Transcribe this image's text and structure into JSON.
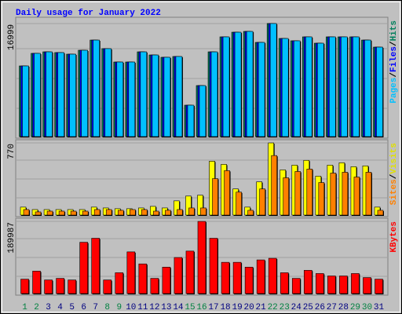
{
  "title": "Daily usage for January 2022",
  "chart_data": [
    {
      "type": "bar",
      "categories": [
        "1",
        "2",
        "3",
        "4",
        "5",
        "6",
        "7",
        "8",
        "9",
        "10",
        "11",
        "12",
        "13",
        "14",
        "15",
        "16",
        "17",
        "18",
        "19",
        "20",
        "21",
        "22",
        "23",
        "24",
        "25",
        "26",
        "27",
        "28",
        "29",
        "30",
        "31"
      ],
      "category_colors": [
        "#008040",
        "#008040",
        "#000080",
        "#000080",
        "#000080",
        "#000080",
        "#000080",
        "#008040",
        "#008040",
        "#000080",
        "#000080",
        "#000080",
        "#000080",
        "#000080",
        "#008040",
        "#008040",
        "#000080",
        "#000080",
        "#000080",
        "#000080",
        "#000080",
        "#008040",
        "#008040",
        "#000080",
        "#000080",
        "#000080",
        "#000080",
        "#000080",
        "#008040",
        "#008040",
        "#000080"
      ],
      "legend_separator": "/",
      "ylim": [
        0,
        17700
      ],
      "yticks": [
        16999
      ],
      "series": [
        {
          "name": "Hits",
          "color": "#00805c",
          "values": [
            10620,
            12510,
            12740,
            12630,
            12390,
            12980,
            14510,
            13220,
            11210,
            11210,
            12740,
            12270,
            11920,
            12040,
            4720,
            7670,
            12740,
            14990,
            15690,
            15810,
            14160,
            16999,
            14750,
            14400,
            14990,
            14040,
            14990,
            14990,
            14990,
            14510,
            13450
          ]
        },
        {
          "name": "Files",
          "color": "#0000ff",
          "values": [
            10620,
            12510,
            12740,
            12630,
            12390,
            12980,
            14510,
            13220,
            11210,
            11210,
            12740,
            12270,
            11920,
            12040,
            4720,
            7670,
            12740,
            14990,
            15690,
            15810,
            14160,
            16999,
            14750,
            14400,
            14990,
            14040,
            14990,
            14990,
            14990,
            14510,
            13450
          ]
        },
        {
          "name": "Pages",
          "color": "#00c0ff",
          "values": [
            10620,
            12510,
            12740,
            12630,
            12390,
            12980,
            14510,
            13220,
            11210,
            11210,
            12740,
            12270,
            11920,
            12040,
            4720,
            7670,
            12740,
            14990,
            15690,
            15810,
            14160,
            16999,
            14750,
            14400,
            14990,
            14040,
            14990,
            14990,
            14990,
            14510,
            13450
          ]
        }
      ]
    },
    {
      "type": "bar",
      "legend_separator": "/",
      "ylim": [
        0,
        787
      ],
      "yticks": [
        770
      ],
      "series": [
        {
          "name": "Visits",
          "color": "#ffff00",
          "values": [
            85,
            59,
            59,
            59,
            59,
            59,
            85,
            76,
            68,
            68,
            76,
            93,
            76,
            152,
            203,
            212,
            575,
            541,
            279,
            85,
            355,
            770,
            482,
            533,
            584,
            415,
            533,
            558,
            516,
            525,
            85
          ]
        },
        {
          "name": "Sites",
          "color": "#ff8000",
          "values": [
            59,
            34,
            42,
            42,
            42,
            42,
            59,
            59,
            51,
            59,
            59,
            42,
            51,
            59,
            76,
            76,
            389,
            474,
            245,
            51,
            279,
            635,
            398,
            465,
            491,
            347,
            448,
            457,
            406,
            457,
            51
          ]
        }
      ]
    },
    {
      "type": "bar",
      "ylim": [
        0,
        194200
      ],
      "yticks": [
        189987
      ],
      "series": [
        {
          "name": "KBytes",
          "color": "#ff0000",
          "values": [
            38000,
            59110,
            35890,
            40110,
            35890,
            135100,
            145660,
            35890,
            54890,
            109770,
            78110,
            40110,
            69660,
            95000,
            111880,
            189987,
            145660,
            82330,
            82330,
            69660,
            88660,
            92880,
            54890,
            40110,
            61220,
            52780,
            46440,
            46440,
            52780,
            42220,
            38000
          ]
        }
      ]
    }
  ]
}
